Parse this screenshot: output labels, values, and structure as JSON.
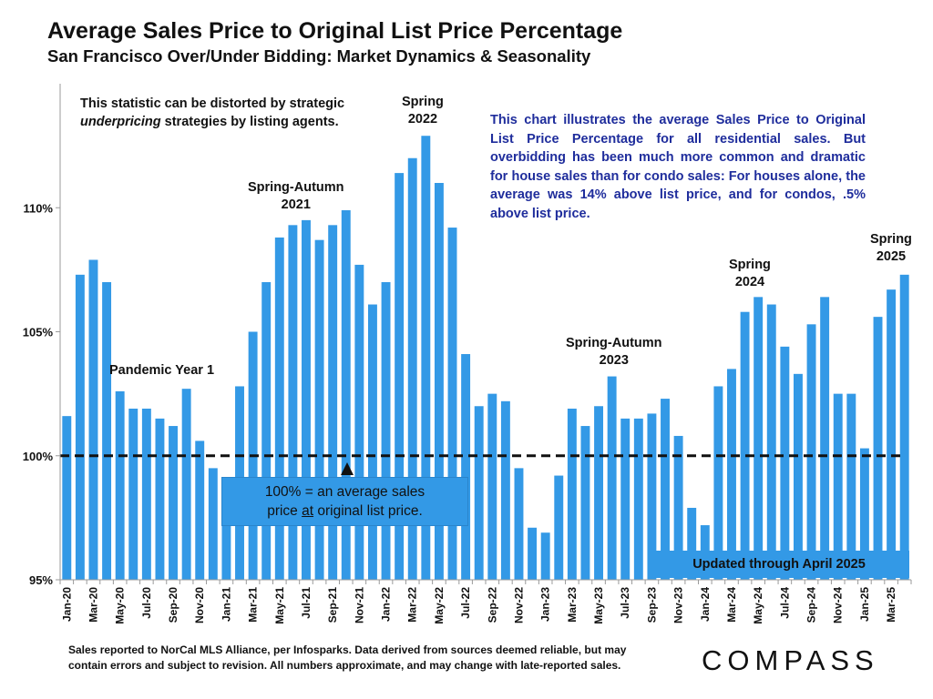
{
  "title": "Average Sales Price to Original List Price Percentage",
  "subtitle": "San Francisco Over/Under Bidding: Market Dynamics & Seasonality",
  "notes": {
    "distort_part1": "This statistic can be distorted by strategic",
    "distort_em": "underpricing",
    "distort_part2": "strategies by listing agents.",
    "chart_explainer": "This chart illustrates the average Sales Price to Original List Price Percentage for all residential sales. But overbidding has been much more common and dramatic for house sales than for condo sales:  For houses alone, the average was 14% above list price, and for condos, .5% above list price."
  },
  "annotations": {
    "pandemic": "Pandemic Year 1",
    "spring_autumn_2021_a": "Spring-Autumn",
    "spring_autumn_2021_b": "2021",
    "spring_2022_a": "Spring",
    "spring_2022_b": "2022",
    "spring_autumn_2023_a": "Spring-Autumn",
    "spring_autumn_2023_b": "2023",
    "spring_2024_a": "Spring",
    "spring_2024_b": "2024",
    "spring_2025_a": "Spring",
    "spring_2025_b": "2025"
  },
  "reference_box": {
    "line1": "100% = an average sales",
    "line2_pre": "price ",
    "line2_u": "at",
    "line2_post": " original list price."
  },
  "updated_label": "Updated through April 2025",
  "footnote": {
    "line1": "Sales reported to NorCal MLS Alliance, per Infosparks. Data derived from sources deemed reliable, but may",
    "line2": "contain errors and subject to revision. All numbers approximate, and may change with late-reported sales."
  },
  "logo": "COMPASS",
  "colors": {
    "bar": "#3399e6",
    "reference_line": "#111111",
    "explainer_text": "#1f2d9c"
  },
  "chart_data": {
    "type": "bar",
    "ylim": [
      95,
      115
    ],
    "yticks": [
      95,
      100,
      105,
      110
    ],
    "ytick_labels": [
      "95%",
      "100%",
      "105%",
      "110%"
    ],
    "reference_line": 100,
    "x_tick_labels": [
      "Jan-20",
      "Mar-20",
      "May-20",
      "Jul-20",
      "Sep-20",
      "Nov-20",
      "Jan-21",
      "Mar-21",
      "May-21",
      "Jul-21",
      "Sep-21",
      "Nov-21",
      "Jan-22",
      "Mar-22",
      "May-22",
      "Jul-22",
      "Sep-22",
      "Nov-22",
      "Jan-23",
      "Mar-23",
      "May-23",
      "Jul-23",
      "Sep-23",
      "Nov-23",
      "Jan-24",
      "Mar-24",
      "May-24",
      "Jul-24",
      "Sep-24",
      "Nov-24",
      "Jan-25",
      "Mar-25"
    ],
    "categories": [
      "Jan-20",
      "Feb-20",
      "Mar-20",
      "Apr-20",
      "May-20",
      "Jun-20",
      "Jul-20",
      "Aug-20",
      "Sep-20",
      "Oct-20",
      "Nov-20",
      "Dec-20",
      "Jan-21",
      "Feb-21",
      "Mar-21",
      "Apr-21",
      "May-21",
      "Jun-21",
      "Jul-21",
      "Aug-21",
      "Sep-21",
      "Oct-21",
      "Nov-21",
      "Dec-21",
      "Jan-22",
      "Feb-22",
      "Mar-22",
      "Apr-22",
      "May-22",
      "Jun-22",
      "Jul-22",
      "Aug-22",
      "Sep-22",
      "Oct-22",
      "Nov-22",
      "Dec-22",
      "Jan-23",
      "Feb-23",
      "Mar-23",
      "Apr-23",
      "May-23",
      "Jun-23",
      "Jul-23",
      "Aug-23",
      "Sep-23",
      "Oct-23",
      "Nov-23",
      "Dec-23",
      "Jan-24",
      "Feb-24",
      "Mar-24",
      "Apr-24",
      "May-24",
      "Jun-24",
      "Jul-24",
      "Aug-24",
      "Sep-24",
      "Oct-24",
      "Nov-24",
      "Dec-24",
      "Jan-25",
      "Feb-25",
      "Mar-25",
      "Apr-25"
    ],
    "values": [
      101.6,
      107.3,
      107.9,
      107.0,
      102.6,
      101.9,
      101.9,
      101.5,
      101.2,
      102.7,
      100.6,
      99.5,
      99.1,
      102.8,
      105.0,
      107.0,
      108.8,
      109.3,
      109.5,
      108.7,
      109.3,
      109.9,
      107.7,
      106.1,
      107.0,
      111.4,
      112.0,
      112.9,
      111.0,
      109.2,
      104.1,
      102.0,
      102.5,
      102.2,
      99.5,
      97.1,
      96.9,
      99.2,
      101.9,
      101.2,
      102.0,
      103.2,
      101.5,
      101.5,
      101.7,
      102.3,
      100.8,
      97.9,
      97.2,
      102.8,
      103.5,
      105.8,
      106.4,
      106.1,
      104.4,
      103.3,
      105.3,
      106.4,
      102.5,
      102.5,
      100.3,
      105.6,
      106.7,
      107.3
    ]
  }
}
